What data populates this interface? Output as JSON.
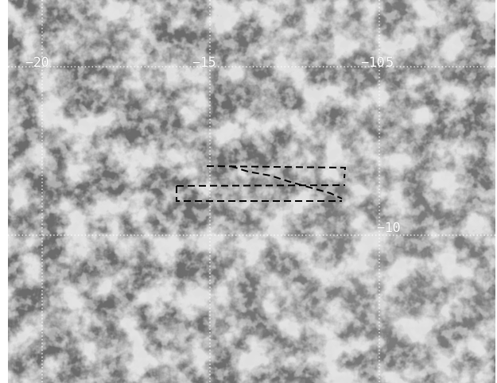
{
  "image": {
    "kind": "grayscale satellite cloud imagery with dotted lat/lon grid",
    "colors": {
      "background_dark": "#6e6e6e",
      "cloud_light": "#bdbdbd",
      "grid_line": "#ffffff",
      "track_line": "#000000"
    }
  },
  "grid": {
    "longitude_labels": [
      "−20",
      "−15",
      "−10",
      "5"
    ],
    "latitude_labels": [
      "−10"
    ]
  },
  "overlay": {
    "flight_track": "dashed black survey pattern"
  }
}
